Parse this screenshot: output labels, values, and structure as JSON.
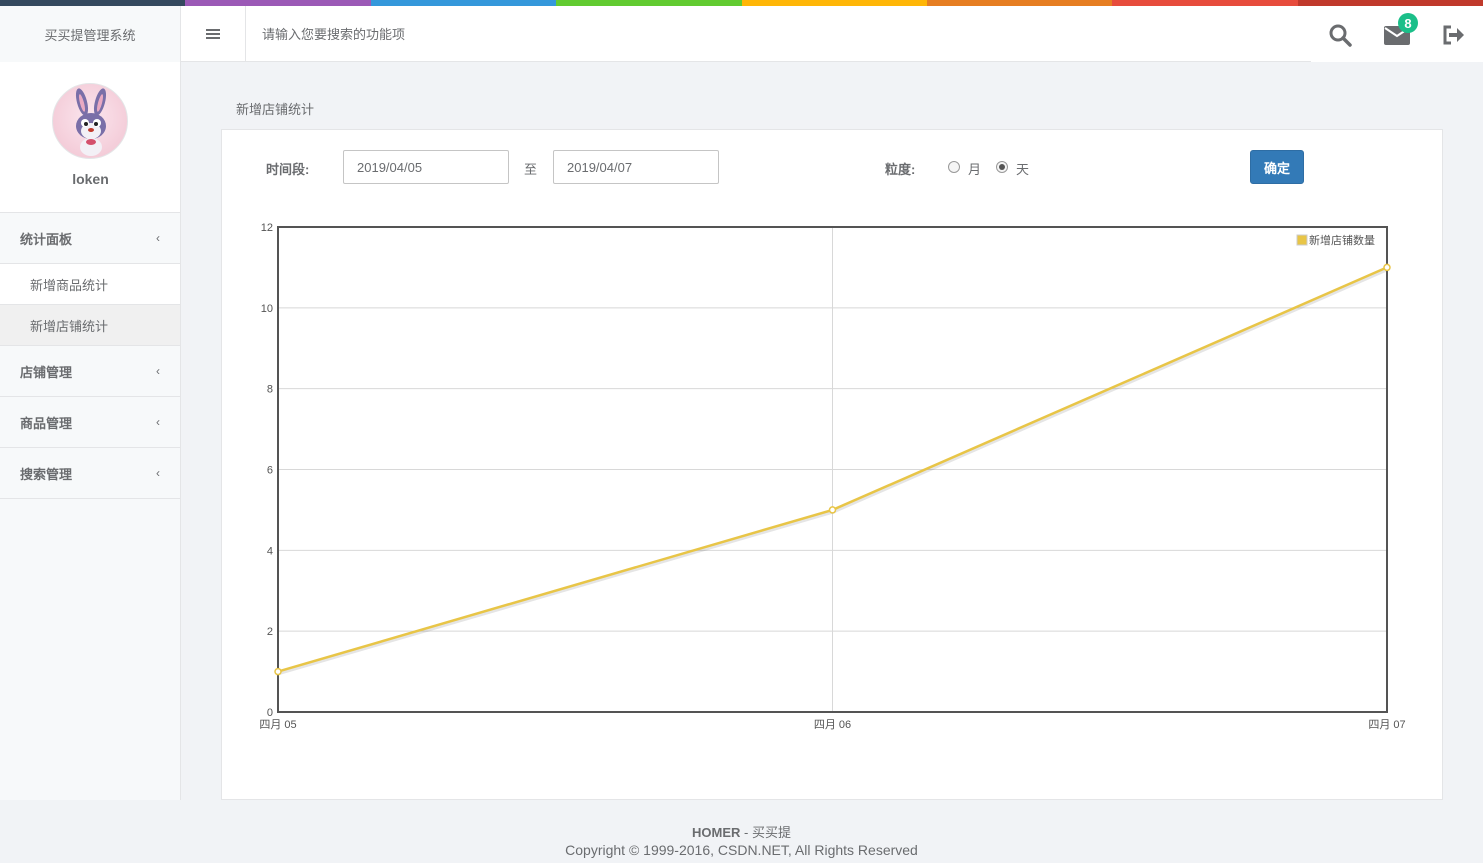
{
  "color_line": [
    "#34495e",
    "#9b59b6",
    "#3498db",
    "#62cb31",
    "#ffb606",
    "#e67e22",
    "#e74c3c",
    "#c0392b"
  ],
  "header": {
    "app_title": "买买提管理系统",
    "search_placeholder": "请输入您要搜索的功能项",
    "mail_badge": "8",
    "icons": [
      "menu-icon",
      "search-icon",
      "envelope-icon",
      "sign-out-icon"
    ]
  },
  "sidebar": {
    "username": "loken",
    "menu": [
      {
        "label": "统计面板",
        "chevron": "‹",
        "children": [
          {
            "label": "新增商品统计",
            "active": false
          },
          {
            "label": "新增店铺统计",
            "active": true
          }
        ]
      },
      {
        "label": "店铺管理",
        "chevron": "‹"
      },
      {
        "label": "商品管理",
        "chevron": "‹"
      },
      {
        "label": "搜索管理",
        "chevron": "‹"
      }
    ]
  },
  "main": {
    "page_title": "新增店铺统计",
    "form": {
      "time_label": "时间段:",
      "start_date": "2019/04/05",
      "to_label": "至",
      "end_date": "2019/04/07",
      "granularity_label": "粒度:",
      "option_month": "月",
      "option_day": "天",
      "selected": "天",
      "confirm_label": "确定"
    }
  },
  "chart_data": {
    "type": "line",
    "categories": [
      "四月 05",
      "四月 06",
      "四月 07"
    ],
    "series": [
      {
        "name": "新增店铺数量",
        "values": [
          1,
          5,
          11
        ],
        "color": "#e8c547"
      }
    ],
    "ylim": [
      0,
      12
    ],
    "yticks": [
      0,
      2,
      4,
      6,
      8,
      10,
      12
    ],
    "grid": true,
    "legend": "top-right"
  },
  "footer": {
    "brand": "HOMER",
    "brand_suffix": " - 买买提",
    "copyright": "Copyright © 1999-2016, CSDN.NET, All Rights Reserved"
  }
}
